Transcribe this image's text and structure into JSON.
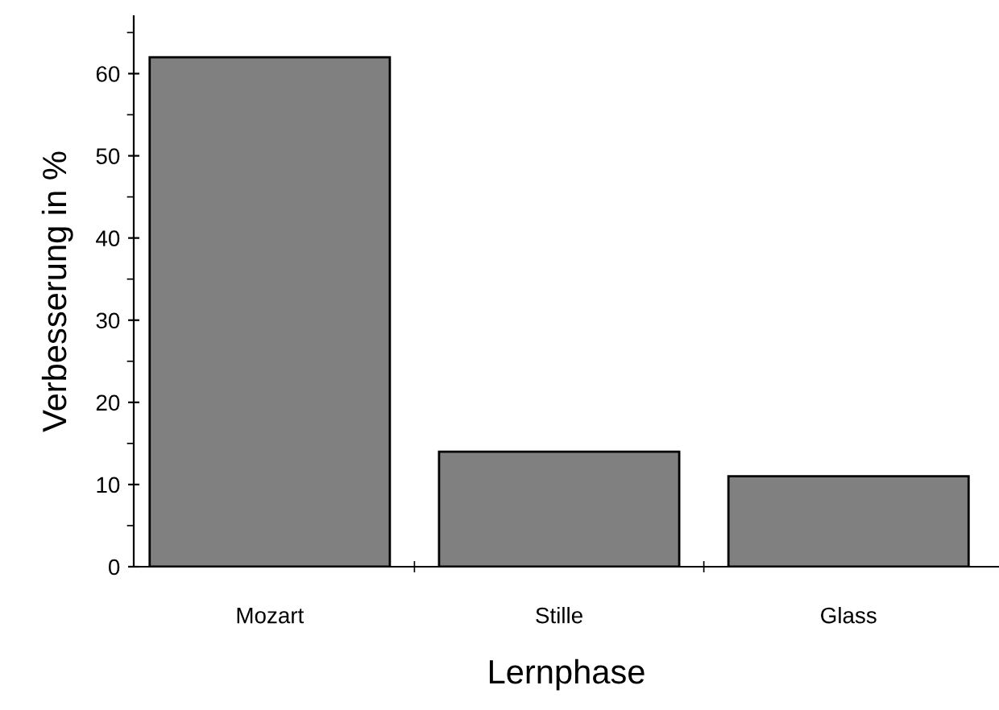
{
  "chart_data": {
    "type": "bar",
    "xlabel": "Lernphase",
    "ylabel": "Verbesserung in %",
    "categories": [
      "Mozart",
      "Stille",
      "Glass"
    ],
    "values": [
      62,
      14,
      11
    ],
    "color": "#808080",
    "ylim": [
      0,
      67
    ],
    "yticks": [
      0,
      10,
      20,
      30,
      40,
      50,
      60
    ],
    "grid": false
  }
}
